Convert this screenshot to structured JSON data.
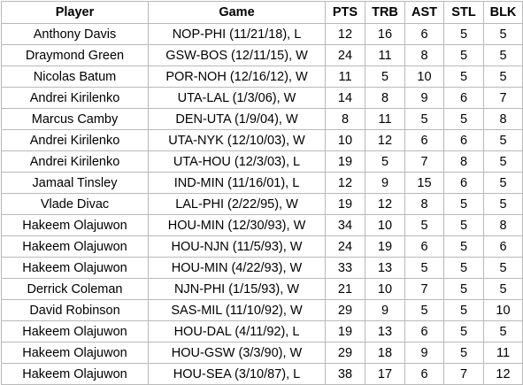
{
  "headers": [
    "Player",
    "Game",
    "PTS",
    "TRB",
    "AST",
    "STL",
    "BLK"
  ],
  "rows": [
    [
      "Anthony Davis",
      "NOP-PHI (11/21/18), L",
      "12",
      "16",
      "6",
      "5",
      "5"
    ],
    [
      "Draymond Green",
      "GSW-BOS (12/11/15), W",
      "24",
      "11",
      "8",
      "5",
      "5"
    ],
    [
      "Nicolas Batum",
      "POR-NOH (12/16/12), W",
      "11",
      "5",
      "10",
      "5",
      "5"
    ],
    [
      "Andrei Kirilenko",
      "UTA-LAL (1/3/06), W",
      "14",
      "8",
      "9",
      "6",
      "7"
    ],
    [
      "Marcus Camby",
      "DEN-UTA (1/9/04), W",
      "8",
      "11",
      "5",
      "5",
      "8"
    ],
    [
      "Andrei Kirilenko",
      "UTA-NYK (12/10/03), W",
      "10",
      "12",
      "6",
      "6",
      "5"
    ],
    [
      "Andrei Kirilenko",
      "UTA-HOU (12/3/03), L",
      "19",
      "5",
      "7",
      "8",
      "5"
    ],
    [
      "Jamaal Tinsley",
      "IND-MIN (11/16/01), L",
      "12",
      "9",
      "15",
      "6",
      "5"
    ],
    [
      "Vlade Divac",
      "LAL-PHI (2/22/95), W",
      "19",
      "12",
      "8",
      "5",
      "5"
    ],
    [
      "Hakeem Olajuwon",
      "HOU-MIN (12/30/93), W",
      "34",
      "10",
      "5",
      "5",
      "8"
    ],
    [
      "Hakeem Olajuwon",
      "HOU-NJN (11/5/93), W",
      "24",
      "19",
      "6",
      "5",
      "6"
    ],
    [
      "Hakeem Olajuwon",
      "HOU-MIN (4/22/93), W",
      "33",
      "13",
      "5",
      "5",
      "5"
    ],
    [
      "Derrick Coleman",
      "NJN-PHI (1/15/93), W",
      "21",
      "10",
      "7",
      "5",
      "5"
    ],
    [
      "David Robinson",
      "SAS-MIL (11/10/92), W",
      "29",
      "9",
      "5",
      "5",
      "10"
    ],
    [
      "Hakeem Olajuwon",
      "HOU-DAL (4/11/92), L",
      "19",
      "13",
      "6",
      "5",
      "5"
    ],
    [
      "Hakeem Olajuwon",
      "HOU-GSW (3/3/90), W",
      "29",
      "18",
      "9",
      "5",
      "11"
    ],
    [
      "Hakeem Olajuwon",
      "HOU-SEA (3/10/87), L",
      "38",
      "17",
      "6",
      "7",
      "12"
    ]
  ]
}
